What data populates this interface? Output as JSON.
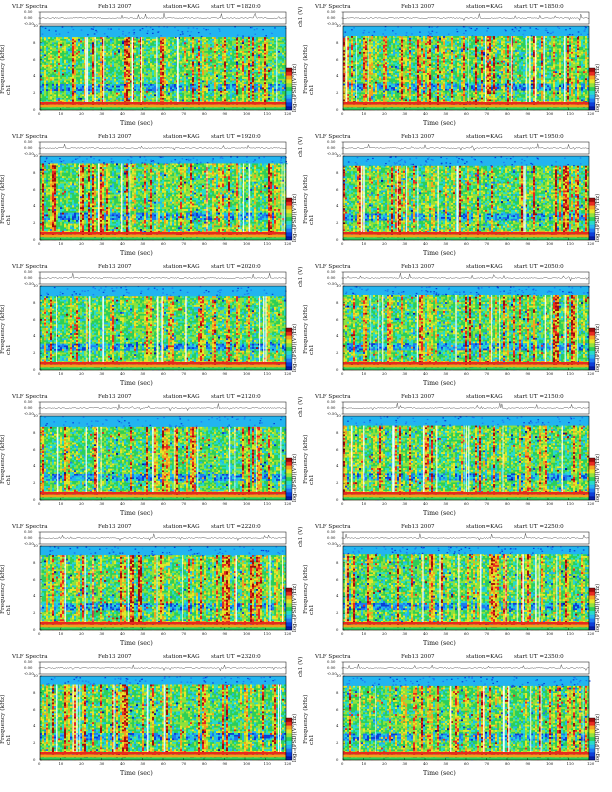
{
  "page": {
    "colors": {
      "background": "#ffffff",
      "spectrogram_base": "#2ccf58",
      "axis": "#000000"
    }
  },
  "chart_data": [
    {
      "type": "heatmap",
      "title": "VLF Spectra",
      "date": "Feb13 2007",
      "station": "station=KAG",
      "start": "start  UT =1820:0",
      "ylabel_top": "ch1 (V)",
      "ylabel": "Frequency (kHz)",
      "ylabel_channel": "ch1",
      "xlabel": "Time (sec)",
      "colorbar_label": "log₁₀(PSD)(V²/Hz)",
      "xlim": [
        0,
        120
      ],
      "ylim": [
        0,
        10
      ],
      "ylim_top": [
        -0.5,
        0.5
      ],
      "x_ticks": [
        "0",
        "10",
        "20",
        "30",
        "40",
        "50",
        "60",
        "70",
        "80",
        "90",
        "100",
        "110",
        "120"
      ],
      "y_ticks": [
        "0",
        "2",
        "4",
        "6",
        "8",
        "10"
      ],
      "y_ticks_top": [
        "0.50",
        "0.00",
        "-0.50"
      ]
    },
    {
      "type": "heatmap",
      "title": "VLF Spectra",
      "date": "Feb13 2007",
      "station": "station=KAG",
      "start": "start  UT =1850:0",
      "ylabel_top": "ch1 (V)",
      "ylabel": "Frequency (kHz)",
      "ylabel_channel": "ch1",
      "xlabel": "Time (sec)",
      "colorbar_label": "log₁₀(PSD)(V²/Hz)",
      "xlim": [
        0,
        120
      ],
      "ylim": [
        0,
        10
      ],
      "ylim_top": [
        -0.5,
        0.5
      ],
      "x_ticks": [
        "0",
        "10",
        "20",
        "30",
        "40",
        "50",
        "60",
        "70",
        "80",
        "90",
        "100",
        "110",
        "120"
      ],
      "y_ticks": [
        "0",
        "2",
        "4",
        "6",
        "8",
        "10"
      ],
      "y_ticks_top": [
        "0.50",
        "0.00",
        "-0.50"
      ]
    },
    {
      "type": "heatmap",
      "title": "VLF Spectra",
      "date": "Feb13 2007",
      "station": "station=KAG",
      "start": "start  UT =1920:0",
      "ylabel_top": "ch1 (V)",
      "ylabel": "Frequency (kHz)",
      "ylabel_channel": "ch1",
      "xlabel": "Time (sec)",
      "colorbar_label": "log₁₀(PSD)(V²/Hz)",
      "xlim": [
        0,
        120
      ],
      "ylim": [
        0,
        10
      ],
      "ylim_top": [
        -0.5,
        0.5
      ],
      "x_ticks": [
        "0",
        "10",
        "20",
        "30",
        "40",
        "50",
        "60",
        "70",
        "80",
        "90",
        "100",
        "110",
        "120"
      ],
      "y_ticks": [
        "0",
        "2",
        "4",
        "6",
        "8",
        "10"
      ],
      "y_ticks_top": [
        "0.50",
        "0.00",
        "-0.50"
      ]
    },
    {
      "type": "heatmap",
      "title": "VLF Spectra",
      "date": "Feb13 2007",
      "station": "station=KAG",
      "start": "start  UT =1950:0",
      "ylabel_top": "ch1 (V)",
      "ylabel": "Frequency (kHz)",
      "ylabel_channel": "ch1",
      "xlabel": "Time (sec)",
      "colorbar_label": "log₁₀(PSD)(V²/Hz)",
      "xlim": [
        0,
        120
      ],
      "ylim": [
        0,
        10
      ],
      "ylim_top": [
        -0.5,
        0.5
      ],
      "x_ticks": [
        "0",
        "10",
        "20",
        "30",
        "40",
        "50",
        "60",
        "70",
        "80",
        "90",
        "100",
        "110",
        "120"
      ],
      "y_ticks": [
        "0",
        "2",
        "4",
        "6",
        "8",
        "10"
      ],
      "y_ticks_top": [
        "0.50",
        "0.00",
        "-0.50"
      ]
    },
    {
      "type": "heatmap",
      "title": "VLF Spectra",
      "date": "Feb13 2007",
      "station": "station=KAG",
      "start": "start  UT =2020:0",
      "ylabel_top": "ch1 (V)",
      "ylabel": "Frequency (kHz)",
      "ylabel_channel": "ch1",
      "xlabel": "Time (sec)",
      "colorbar_label": "log₁₀(PSD)(V²/Hz)",
      "xlim": [
        0,
        120
      ],
      "ylim": [
        0,
        10
      ],
      "ylim_top": [
        -0.5,
        0.5
      ],
      "x_ticks": [
        "0",
        "10",
        "20",
        "30",
        "40",
        "50",
        "60",
        "70",
        "80",
        "90",
        "100",
        "110",
        "120"
      ],
      "y_ticks": [
        "0",
        "2",
        "4",
        "6",
        "8",
        "10"
      ],
      "y_ticks_top": [
        "0.50",
        "0.00",
        "-0.50"
      ]
    },
    {
      "type": "heatmap",
      "title": "VLF Spectra",
      "date": "Feb13 2007",
      "station": "station=KAG",
      "start": "start  UT =2050:0",
      "ylabel_top": "ch1 (V)",
      "ylabel": "Frequency (kHz)",
      "ylabel_channel": "ch1",
      "xlabel": "Time (sec)",
      "colorbar_label": "log₁₀(PSD)(V²/Hz)",
      "xlim": [
        0,
        120
      ],
      "ylim": [
        0,
        10
      ],
      "ylim_top": [
        -0.5,
        0.5
      ],
      "x_ticks": [
        "0",
        "10",
        "20",
        "30",
        "40",
        "50",
        "60",
        "70",
        "80",
        "90",
        "100",
        "110",
        "120"
      ],
      "y_ticks": [
        "0",
        "2",
        "4",
        "6",
        "8",
        "10"
      ],
      "y_ticks_top": [
        "0.50",
        "0.00",
        "-0.50"
      ]
    },
    {
      "type": "heatmap",
      "title": "VLF Spectra",
      "date": "Feb13 2007",
      "station": "station=KAG",
      "start": "start  UT =2120:0",
      "ylabel_top": "ch1 (V)",
      "ylabel": "Frequency (kHz)",
      "ylabel_channel": "ch1",
      "xlabel": "Time (sec)",
      "colorbar_label": "log₁₀(PSD)(V²/Hz)",
      "xlim": [
        0,
        120
      ],
      "ylim": [
        0,
        10
      ],
      "ylim_top": [
        -0.5,
        0.5
      ],
      "x_ticks": [
        "0",
        "10",
        "20",
        "30",
        "40",
        "50",
        "60",
        "70",
        "80",
        "90",
        "100",
        "110",
        "120"
      ],
      "y_ticks": [
        "0",
        "2",
        "4",
        "6",
        "8",
        "10"
      ],
      "y_ticks_top": [
        "0.50",
        "0.00",
        "-0.50"
      ]
    },
    {
      "type": "heatmap",
      "title": "VLF Spectra",
      "date": "Feb13 2007",
      "station": "station=KAG",
      "start": "start  UT =2150:0",
      "ylabel_top": "ch1 (V)",
      "ylabel": "Frequency (kHz)",
      "ylabel_channel": "ch1",
      "xlabel": "Time (sec)",
      "colorbar_label": "log₁₀(PSD)(V²/Hz)",
      "xlim": [
        0,
        120
      ],
      "ylim": [
        0,
        10
      ],
      "ylim_top": [
        -0.5,
        0.5
      ],
      "x_ticks": [
        "0",
        "10",
        "20",
        "30",
        "40",
        "50",
        "60",
        "70",
        "80",
        "90",
        "100",
        "110",
        "120"
      ],
      "y_ticks": [
        "0",
        "2",
        "4",
        "6",
        "8",
        "10"
      ],
      "y_ticks_top": [
        "0.50",
        "0.00",
        "-0.50"
      ]
    },
    {
      "type": "heatmap",
      "title": "VLF Spectra",
      "date": "Feb13 2007",
      "station": "station=KAG",
      "start": "start  UT =2220:0",
      "ylabel_top": "ch1 (V)",
      "ylabel": "Frequency (kHz)",
      "ylabel_channel": "ch1",
      "xlabel": "Time (sec)",
      "colorbar_label": "log₁₀(PSD)(V²/Hz)",
      "xlim": [
        0,
        120
      ],
      "ylim": [
        0,
        10
      ],
      "ylim_top": [
        -0.5,
        0.5
      ],
      "x_ticks": [
        "0",
        "10",
        "20",
        "30",
        "40",
        "50",
        "60",
        "70",
        "80",
        "90",
        "100",
        "110",
        "120"
      ],
      "y_ticks": [
        "0",
        "2",
        "4",
        "6",
        "8",
        "10"
      ],
      "y_ticks_top": [
        "0.50",
        "0.00",
        "-0.50"
      ]
    },
    {
      "type": "heatmap",
      "title": "VLF Spectra",
      "date": "Feb13 2007",
      "station": "station=KAG",
      "start": "start  UT =2250:0",
      "ylabel_top": "ch1 (V)",
      "ylabel": "Frequency (kHz)",
      "ylabel_channel": "ch1",
      "xlabel": "Time (sec)",
      "colorbar_label": "log₁₀(PSD)(V²/Hz)",
      "xlim": [
        0,
        120
      ],
      "ylim": [
        0,
        10
      ],
      "ylim_top": [
        -0.5,
        0.5
      ],
      "x_ticks": [
        "0",
        "10",
        "20",
        "30",
        "40",
        "50",
        "60",
        "70",
        "80",
        "90",
        "100",
        "110",
        "120"
      ],
      "y_ticks": [
        "0",
        "2",
        "4",
        "6",
        "8",
        "10"
      ],
      "y_ticks_top": [
        "0.50",
        "0.00",
        "-0.50"
      ]
    },
    {
      "type": "heatmap",
      "title": "VLF Spectra",
      "date": "Feb13 2007",
      "station": "station=KAG",
      "start": "start  UT =2320:0",
      "ylabel_top": "ch1 (V)",
      "ylabel": "Frequency (kHz)",
      "ylabel_channel": "ch1",
      "xlabel": "Time (sec)",
      "colorbar_label": "log₁₀(PSD)(V²/Hz)",
      "xlim": [
        0,
        120
      ],
      "ylim": [
        0,
        10
      ],
      "ylim_top": [
        -0.5,
        0.5
      ],
      "x_ticks": [
        "0",
        "10",
        "20",
        "30",
        "40",
        "50",
        "60",
        "70",
        "80",
        "90",
        "100",
        "110",
        "120"
      ],
      "y_ticks": [
        "0",
        "2",
        "4",
        "6",
        "8",
        "10"
      ],
      "y_ticks_top": [
        "0.50",
        "0.00",
        "-0.50"
      ]
    },
    {
      "type": "heatmap",
      "title": "VLF Spectra",
      "date": "Feb13 2007",
      "station": "station=KAG",
      "start": "start  UT =2350:0",
      "ylabel_top": "ch1 (V)",
      "ylabel": "Frequency (kHz)",
      "ylabel_channel": "ch1",
      "xlabel": "Time (sec)",
      "colorbar_label": "log₁₀(PSD)(V²/Hz)",
      "xlim": [
        0,
        120
      ],
      "ylim": [
        0,
        10
      ],
      "ylim_top": [
        -0.5,
        0.5
      ],
      "x_ticks": [
        "0",
        "10",
        "20",
        "30",
        "40",
        "50",
        "60",
        "70",
        "80",
        "90",
        "100",
        "110",
        "120"
      ],
      "y_ticks": [
        "0",
        "2",
        "4",
        "6",
        "8",
        "10"
      ],
      "y_ticks_top": [
        "0.50",
        "0.00",
        "-0.50"
      ]
    }
  ]
}
